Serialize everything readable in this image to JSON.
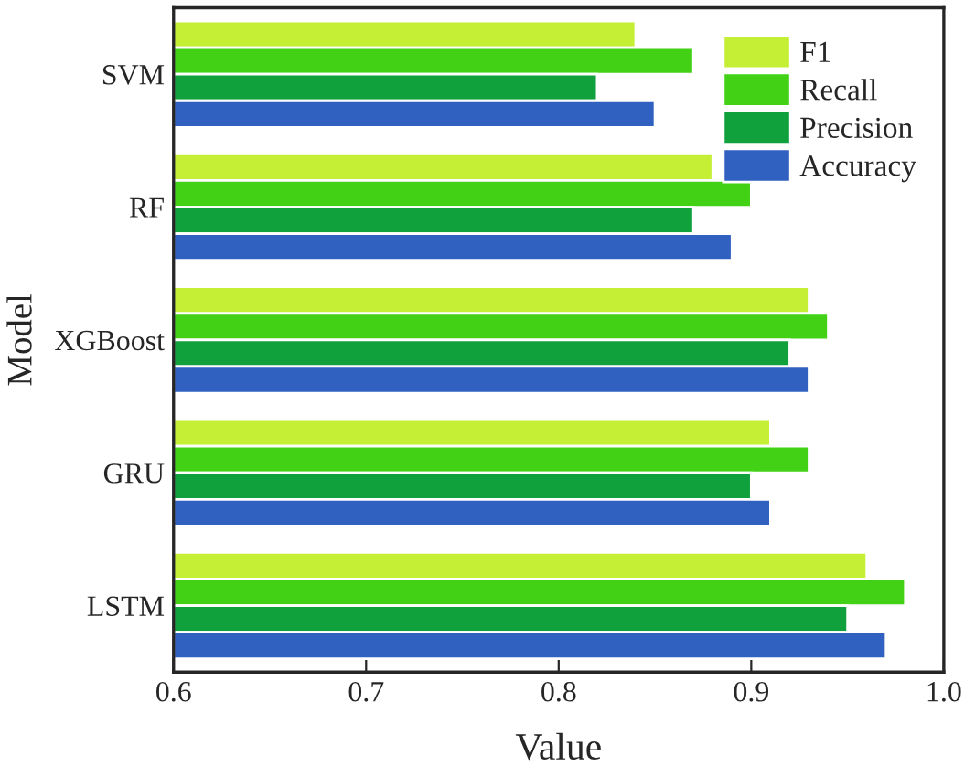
{
  "chart_data": {
    "type": "bar",
    "orientation": "horizontal",
    "xlabel": "Value",
    "ylabel": "Model",
    "categories": [
      "SVM",
      "RF",
      "XGBoost",
      "GRU",
      "LSTM"
    ],
    "series": [
      {
        "name": "F1",
        "color": "#c4ef34",
        "values": [
          0.84,
          0.88,
          0.93,
          0.91,
          0.96
        ]
      },
      {
        "name": "Recall",
        "color": "#42d115",
        "values": [
          0.87,
          0.9,
          0.94,
          0.93,
          0.98
        ]
      },
      {
        "name": "Precision",
        "color": "#10a03c",
        "values": [
          0.82,
          0.87,
          0.92,
          0.9,
          0.95
        ]
      },
      {
        "name": "Accuracy",
        "color": "#3060c0",
        "values": [
          0.85,
          0.89,
          0.93,
          0.91,
          0.97
        ]
      }
    ],
    "xlim": [
      0.6,
      1.0
    ],
    "xticks": [
      0.6,
      0.7,
      0.8,
      0.9,
      {
        "value": 1.0,
        "label": "1.0"
      }
    ],
    "legend": "top right",
    "grid": false
  }
}
